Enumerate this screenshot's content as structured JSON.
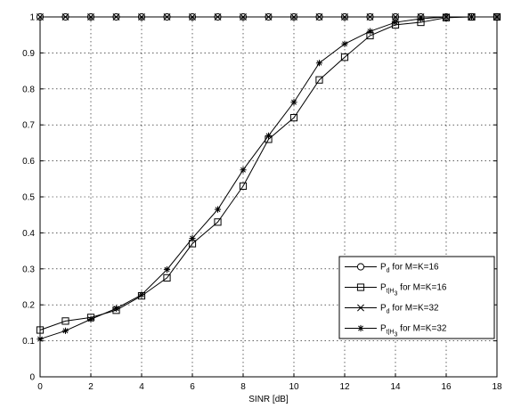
{
  "chart_data": {
    "type": "line",
    "title": "",
    "xlabel": "SINR [dB]",
    "ylabel": "",
    "xlim": [
      0,
      18
    ],
    "ylim": [
      0,
      1
    ],
    "xticks": [
      0,
      2,
      4,
      6,
      8,
      10,
      12,
      14,
      16,
      18
    ],
    "yticks": [
      0,
      0.1,
      0.2,
      0.3,
      0.4,
      0.5,
      0.6,
      0.7,
      0.8,
      0.9,
      1
    ],
    "grid": true,
    "legend_position": "bottom-right",
    "x": [
      0,
      1,
      2,
      3,
      4,
      5,
      6,
      7,
      8,
      9,
      10,
      11,
      12,
      13,
      14,
      15,
      16,
      17,
      18
    ],
    "series": [
      {
        "name": "P_d for M=K=16",
        "legend": {
          "main": "P",
          "sub": "d",
          "rest": " for M=K=16"
        },
        "marker": "circle",
        "values": [
          1,
          1,
          1,
          1,
          1,
          1,
          1,
          1,
          1,
          1,
          1,
          1,
          1,
          1,
          1,
          1,
          1,
          1,
          1
        ]
      },
      {
        "name": "P_t|H3 for M=K=16",
        "legend": {
          "main": "P",
          "sub": "t|H",
          "subsub": "3",
          "rest": " for M=K=16"
        },
        "marker": "square",
        "values": [
          0.13,
          0.155,
          0.165,
          0.185,
          0.225,
          0.275,
          0.37,
          0.43,
          0.53,
          0.66,
          0.72,
          0.825,
          0.888,
          0.948,
          0.978,
          0.985,
          0.998,
          1,
          1
        ]
      },
      {
        "name": "P_d for M=K=32",
        "legend": {
          "main": "P",
          "sub": "d",
          "rest": " for M=K=32"
        },
        "marker": "x",
        "values": [
          1,
          1,
          1,
          1,
          1,
          1,
          1,
          1,
          1,
          1,
          1,
          1,
          1,
          1,
          1,
          1,
          1,
          1,
          1
        ]
      },
      {
        "name": "P_t|H3 for M=K=32",
        "legend": {
          "main": "P",
          "sub": "t|H",
          "subsub": "3",
          "rest": " for M=K=32"
        },
        "marker": "star",
        "values": [
          0.105,
          0.128,
          0.16,
          0.19,
          0.228,
          0.298,
          0.385,
          0.465,
          0.575,
          0.67,
          0.763,
          0.872,
          0.925,
          0.96,
          0.985,
          0.995,
          1,
          1,
          1
        ]
      }
    ]
  }
}
